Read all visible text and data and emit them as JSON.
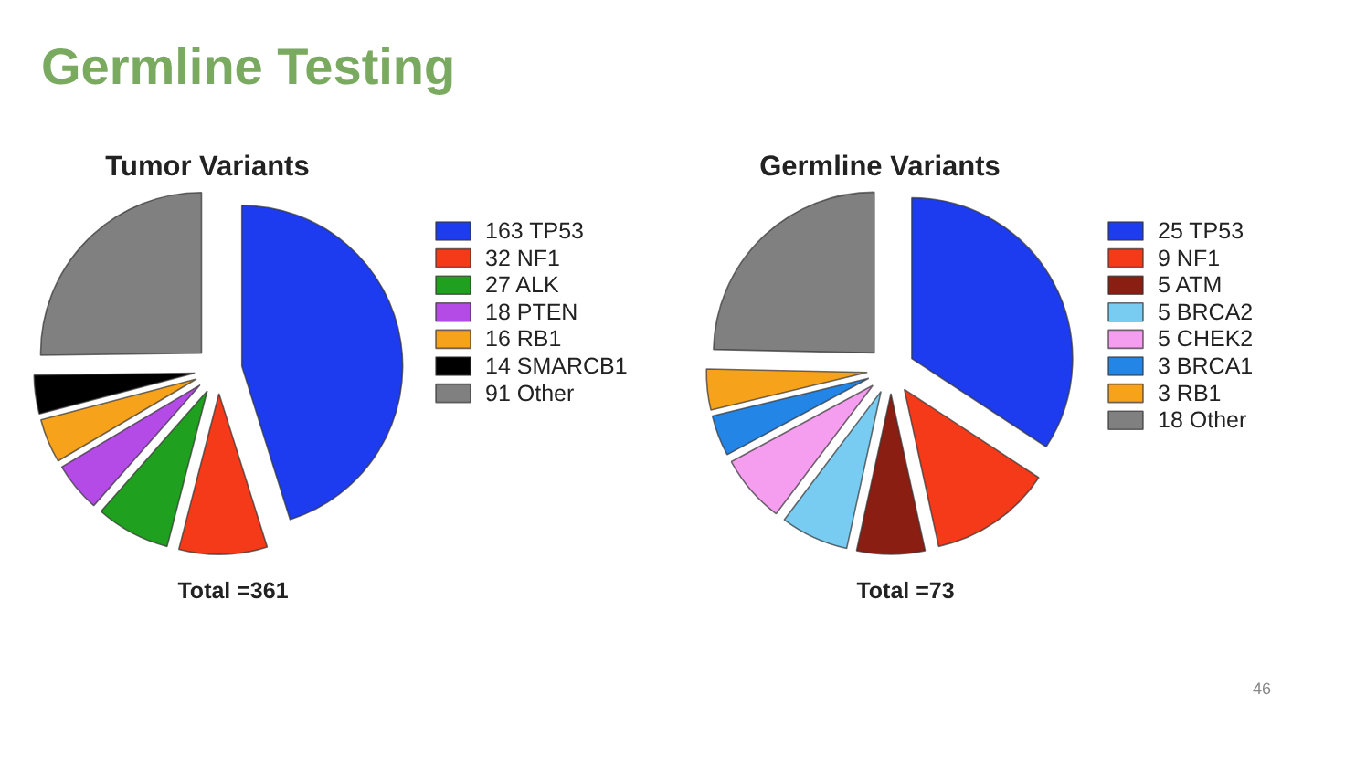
{
  "chart_data": [
    {
      "type": "other",
      "title": "Germline Testing",
      "annotations": [
        "46"
      ]
    },
    {
      "type": "pie",
      "title": "Tumor Variants",
      "categories": [
        "163 TP53",
        "32 NF1",
        "27 ALK",
        "18 PTEN",
        "16 RB1",
        "14 SMARCB1",
        "91 Other"
      ],
      "values": [
        163,
        32,
        27,
        18,
        16,
        14,
        91
      ],
      "colors": [
        "#1d3cf0",
        "#f53a1a",
        "#1fa01f",
        "#b44be6",
        "#f7a21b",
        "#000000",
        "#808080"
      ],
      "annotations": [
        "Total =361"
      ],
      "legend": "right"
    },
    {
      "type": "pie",
      "title": "Germline Variants",
      "categories": [
        "25 TP53",
        "9 NF1",
        "5 ATM",
        "5 BRCA2",
        "5 CHEK2",
        "3 BRCA1",
        "3 RB1",
        "18 Other"
      ],
      "values": [
        25,
        9,
        5,
        5,
        5,
        3,
        3,
        18
      ],
      "colors": [
        "#1d3cf0",
        "#f53a1a",
        "#8b1e12",
        "#78ccf2",
        "#f59ef0",
        "#2385e6",
        "#f7a21b",
        "#808080"
      ],
      "annotations": [
        "Total =73"
      ],
      "legend": "right"
    }
  ]
}
